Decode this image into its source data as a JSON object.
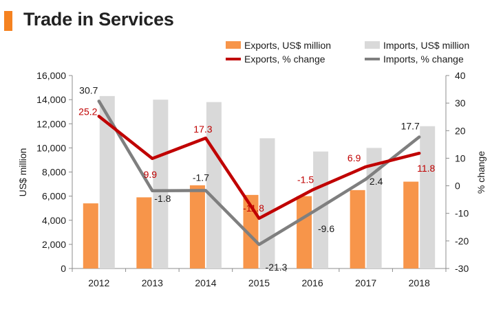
{
  "header": {
    "title": "Trade in Services",
    "accent_color": "#F58220"
  },
  "chart_data": {
    "type": "bar+line",
    "title": "Trade in Services",
    "categories": [
      "2012",
      "2013",
      "2014",
      "2015",
      "2016",
      "2017",
      "2018"
    ],
    "ylabel": "US$ million",
    "y2label": "% change",
    "ylim": [
      0,
      16000
    ],
    "y2lim": [
      -30,
      40
    ],
    "yticks": [
      "0",
      "2,000",
      "4,000",
      "6,000",
      "8,000",
      "10,000",
      "12,000",
      "14,000",
      "16,000"
    ],
    "y2ticks": [
      "40",
      "30",
      "20",
      "10",
      "0",
      "-10",
      "-20",
      "-30"
    ],
    "series": [
      {
        "name": "Exports, US$ million",
        "kind": "bar",
        "axis": "left",
        "color": "#F7954A",
        "values": [
          5400,
          5900,
          6900,
          6100,
          6000,
          6500,
          7200
        ]
      },
      {
        "name": "Imports, US$ million",
        "kind": "bar",
        "axis": "left",
        "color": "#D9D9D9",
        "values": [
          14300,
          14000,
          13800,
          10800,
          9700,
          10000,
          11800
        ]
      },
      {
        "name": "Exports, % change",
        "kind": "line",
        "axis": "right",
        "color": "#C00000",
        "values": [
          25.2,
          9.9,
          17.3,
          -11.8,
          -1.5,
          6.9,
          11.8
        ],
        "labels": [
          "25.2",
          "9.9",
          "17.3",
          "-11.8",
          "-1.5",
          "6.9",
          "11.8"
        ]
      },
      {
        "name": "Imports, % change",
        "kind": "line",
        "axis": "right",
        "color": "#7F7F7F",
        "values": [
          30.7,
          -1.8,
          -1.7,
          -21.3,
          -9.6,
          2.4,
          17.7
        ],
        "labels": [
          "30.7",
          "-1.8",
          "-1.7",
          "-21.3",
          "-9.6",
          "2.4",
          "17.7"
        ]
      }
    ],
    "legend": {
      "position": "top-right",
      "items": [
        "Exports, US$ million",
        "Imports, US$ million",
        "Exports, % change",
        "Imports, % change"
      ]
    }
  }
}
